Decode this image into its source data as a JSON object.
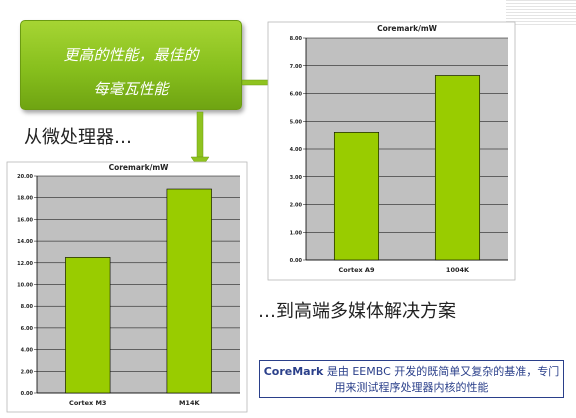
{
  "callout": {
    "line1": "更高的性能，最佳的",
    "line2": "每毫瓦性能"
  },
  "labels": {
    "from_micro": "从微处理器…",
    "to_multimedia": "…到高端多媒体解决方案"
  },
  "note": {
    "brand": "CoreMark",
    "text1": " 是由 EEMBC 开发的既简单又复杂的基准，专门",
    "text2": "用来测试程序处理器内核的性能"
  },
  "colors": {
    "bar": "#99cc00",
    "bar_stroke": "#000000",
    "plot_bg": "#c0c0c0",
    "arrow": "#8fc31f",
    "note_border": "#2a3f8a"
  },
  "chart_data": [
    {
      "type": "bar",
      "title": "Coremark/mW",
      "categories": [
        "Cortex M3",
        "M14K"
      ],
      "values": [
        12.5,
        18.8
      ],
      "ylim": [
        0,
        20
      ],
      "yticks": [
        "0.00",
        "2.00",
        "4.00",
        "6.00",
        "8.00",
        "10.00",
        "12.00",
        "14.00",
        "16.00",
        "18.00",
        "20.00"
      ],
      "grid": true,
      "xlabel": "",
      "ylabel": ""
    },
    {
      "type": "bar",
      "title": "Coremark/mW",
      "categories": [
        "Cortex A9",
        "1004K"
      ],
      "values": [
        4.6,
        6.65
      ],
      "ylim": [
        0,
        8
      ],
      "yticks": [
        "0.00",
        "1.00",
        "2.00",
        "3.00",
        "4.00",
        "5.00",
        "6.00",
        "7.00",
        "8.00"
      ],
      "grid": true,
      "xlabel": "",
      "ylabel": ""
    }
  ]
}
